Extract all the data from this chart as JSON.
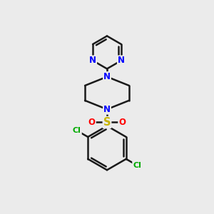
{
  "background_color": "#ebebeb",
  "bond_color": "#1a1a1a",
  "atom_colors": {
    "N": "#0000ff",
    "S": "#c8b400",
    "O": "#ff0000",
    "Cl": "#00aa00",
    "C": "#1a1a1a"
  },
  "bond_width": 1.8,
  "font_size_atoms": 8.5,
  "fig_bg": "#ebebeb"
}
